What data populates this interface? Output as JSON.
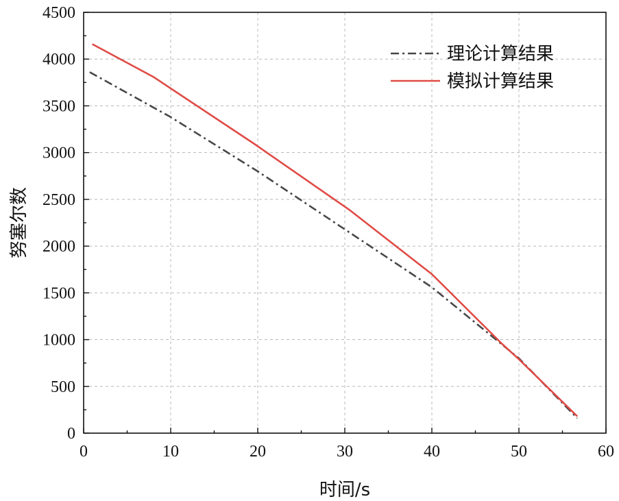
{
  "chart_data": {
    "type": "line",
    "title": "",
    "xlabel": "时间/s",
    "ylabel": "努塞尔数",
    "xlim": [
      0,
      60
    ],
    "ylim": [
      0,
      4500
    ],
    "xticks": [
      0,
      10,
      20,
      30,
      40,
      50,
      60
    ],
    "yticks": [
      0,
      500,
      1000,
      1500,
      2000,
      2500,
      3000,
      3500,
      4000,
      4500
    ],
    "grid": true,
    "legend_position": "top-right",
    "series": [
      {
        "name": "理论计算结果",
        "color": "#474747",
        "style": "dash-dot",
        "x": [
          0.7,
          10,
          20,
          30,
          40,
          50,
          56.7
        ],
        "y": [
          3860,
          3380,
          2800,
          2180,
          1560,
          800,
          160
        ]
      },
      {
        "name": "模拟计算结果",
        "color": "#e04a45",
        "style": "solid",
        "x": [
          1.0,
          8.0,
          19.5,
          30.5,
          40.0,
          48,
          50,
          56.7
        ],
        "y": [
          4160,
          3810,
          3100,
          2390,
          1700,
          960,
          790,
          180
        ]
      }
    ]
  }
}
